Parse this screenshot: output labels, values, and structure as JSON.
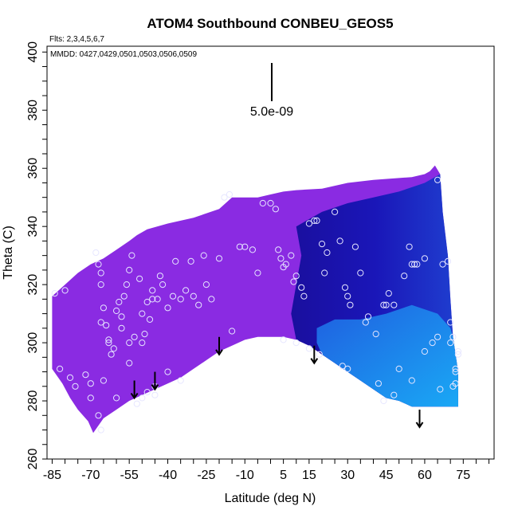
{
  "chart_data": {
    "type": "heatmap",
    "title": "ATOM4 Southbound CONBEU_GEOS5",
    "subtitle_flights": "Flts: 2,3,4,5,6,7",
    "subtitle_dates": "MMDD: 0427,0429,0501,0503,0506,0509",
    "xlabel": "Latitude (deg N)",
    "ylabel": "Theta (C)",
    "xlim": [
      -87,
      87
    ],
    "ylim": [
      260,
      402
    ],
    "x_ticks": [
      -85,
      -70,
      -55,
      -40,
      -25,
      -10,
      5,
      15,
      30,
      45,
      60,
      75
    ],
    "x_tick_labels": [
      "-85",
      "-70",
      "-55",
      "-40",
      "-25",
      "-10",
      "5",
      "15",
      "30",
      "45",
      "60",
      "75"
    ],
    "y_ticks": [
      260,
      280,
      300,
      320,
      340,
      360,
      380,
      400
    ],
    "y_tick_labels": [
      "260",
      "280",
      "300",
      "320",
      "340",
      "360",
      "380",
      "400"
    ],
    "scale_bar_label": "5.0e-09",
    "colors": {
      "violet": "#8a2be2",
      "deep_blue": "#1a0f9e",
      "mid_blue": "#1f5fe0",
      "light_blue": "#1aa8f5",
      "point_stroke": "#e6e6ff",
      "arrow": "#000000"
    },
    "upper_boundary": [
      [
        -85,
        316
      ],
      [
        -80,
        320
      ],
      [
        -75,
        324
      ],
      [
        -70,
        327
      ],
      [
        -65,
        329
      ],
      [
        -60,
        332
      ],
      [
        -55,
        335
      ],
      [
        -52,
        337
      ],
      [
        -48,
        339
      ],
      [
        -40,
        341
      ],
      [
        -30,
        343
      ],
      [
        -20,
        346
      ],
      [
        -15,
        350
      ],
      [
        -10,
        350
      ],
      [
        -5,
        350
      ],
      [
        0,
        351
      ],
      [
        5,
        352
      ],
      [
        10,
        352.5
      ],
      [
        20,
        353
      ],
      [
        30,
        355
      ],
      [
        40,
        356
      ],
      [
        55,
        357
      ],
      [
        60,
        358
      ],
      [
        62,
        359
      ],
      [
        64,
        361
      ],
      [
        66,
        358
      ],
      [
        67,
        345
      ],
      [
        69,
        330
      ],
      [
        70,
        315
      ],
      [
        71,
        302
      ],
      [
        73,
        290
      ],
      [
        73,
        278
      ],
      [
        65,
        278
      ],
      [
        55,
        278
      ],
      [
        50,
        280
      ]
    ],
    "lower_boundary": [
      [
        -85,
        291
      ],
      [
        -81,
        286
      ],
      [
        -78,
        281
      ],
      [
        -75,
        277
      ],
      [
        -71,
        273
      ],
      [
        -69,
        269
      ],
      [
        -65,
        274
      ],
      [
        -60,
        277
      ],
      [
        -55,
        280
      ],
      [
        -50,
        282
      ],
      [
        -45,
        284
      ],
      [
        -40,
        286
      ],
      [
        -35,
        288
      ],
      [
        -30,
        291
      ],
      [
        -25,
        294
      ],
      [
        -20,
        297
      ],
      [
        -15,
        299
      ],
      [
        -10,
        301
      ],
      [
        -5,
        302
      ],
      [
        0,
        302
      ],
      [
        5,
        302
      ],
      [
        10,
        301
      ],
      [
        15,
        299
      ],
      [
        20,
        296
      ],
      [
        25,
        293
      ],
      [
        30,
        290
      ],
      [
        35,
        287
      ],
      [
        40,
        284
      ],
      [
        45,
        281
      ],
      [
        50,
        280
      ]
    ],
    "blue_core": [
      [
        10,
        340
      ],
      [
        20,
        345
      ],
      [
        30,
        348
      ],
      [
        40,
        350
      ],
      [
        50,
        352
      ],
      [
        60,
        355
      ],
      [
        66,
        358
      ],
      [
        67,
        345
      ],
      [
        69,
        330
      ],
      [
        70,
        315
      ],
      [
        71,
        302
      ],
      [
        73,
        290
      ],
      [
        73,
        278
      ],
      [
        55,
        278
      ],
      [
        50,
        280
      ],
      [
        45,
        281
      ],
      [
        40,
        284
      ],
      [
        35,
        287
      ],
      [
        30,
        290
      ],
      [
        25,
        293
      ],
      [
        20,
        296
      ],
      [
        15,
        299
      ],
      [
        10,
        301
      ],
      [
        8,
        310
      ],
      [
        10,
        320
      ],
      [
        12,
        330
      ]
    ],
    "light_region": [
      [
        18,
        305
      ],
      [
        25,
        308
      ],
      [
        35,
        308
      ],
      [
        45,
        310
      ],
      [
        55,
        313
      ],
      [
        65,
        310
      ],
      [
        70,
        305
      ],
      [
        71,
        302
      ],
      [
        73,
        290
      ],
      [
        73,
        278
      ],
      [
        55,
        278
      ],
      [
        50,
        280
      ],
      [
        45,
        281
      ],
      [
        40,
        284
      ],
      [
        35,
        287
      ],
      [
        30,
        290
      ],
      [
        25,
        293
      ],
      [
        20,
        296
      ],
      [
        18,
        300
      ]
    ],
    "points": [
      [
        -84,
        317
      ],
      [
        -82,
        291
      ],
      [
        -80,
        318
      ],
      [
        -78,
        288
      ],
      [
        -76,
        285
      ],
      [
        -72,
        289
      ],
      [
        -70,
        286
      ],
      [
        -68,
        331
      ],
      [
        -67,
        327
      ],
      [
        -66,
        324
      ],
      [
        -66,
        320
      ],
      [
        -65,
        312
      ],
      [
        -66,
        307
      ],
      [
        -64,
        306
      ],
      [
        -63,
        300
      ],
      [
        -62,
        296
      ],
      [
        -63,
        301
      ],
      [
        -61,
        298
      ],
      [
        -60,
        311
      ],
      [
        -58,
        309
      ],
      [
        -59,
        314
      ],
      [
        -57,
        316
      ],
      [
        -58,
        305
      ],
      [
        -56,
        320
      ],
      [
        -55,
        325
      ],
      [
        -54,
        330
      ],
      [
        -55,
        300
      ],
      [
        -53,
        302
      ],
      [
        -51,
        322
      ],
      [
        -50,
        310
      ],
      [
        -50,
        300
      ],
      [
        -49,
        303
      ],
      [
        -48,
        314
      ],
      [
        -47,
        308
      ],
      [
        -46,
        315
      ],
      [
        -46,
        318
      ],
      [
        -44,
        315
      ],
      [
        -43,
        323
      ],
      [
        -42,
        320
      ],
      [
        -40,
        312
      ],
      [
        -38,
        316
      ],
      [
        -37,
        328
      ],
      [
        -35,
        315
      ],
      [
        -33,
        318
      ],
      [
        -31,
        328
      ],
      [
        -30,
        316
      ],
      [
        -28,
        313
      ],
      [
        -26,
        330
      ],
      [
        -25,
        320
      ],
      [
        -23,
        315
      ],
      [
        -20,
        329
      ],
      [
        -18,
        350
      ],
      [
        -16,
        351
      ],
      [
        -12,
        333
      ],
      [
        -10,
        333
      ],
      [
        -7,
        332
      ],
      [
        -5,
        324
      ],
      [
        -3,
        348
      ],
      [
        0,
        348
      ],
      [
        2,
        346
      ],
      [
        3,
        332
      ],
      [
        4,
        329
      ],
      [
        5,
        326
      ],
      [
        6,
        327
      ],
      [
        8,
        330
      ],
      [
        9,
        321
      ],
      [
        10,
        323
      ],
      [
        12,
        319
      ],
      [
        13,
        316
      ],
      [
        15,
        341
      ],
      [
        17,
        342
      ],
      [
        18,
        342
      ],
      [
        20,
        334
      ],
      [
        21,
        324
      ],
      [
        22,
        331
      ],
      [
        25,
        345
      ],
      [
        27,
        335
      ],
      [
        29,
        319
      ],
      [
        30,
        316
      ],
      [
        31,
        313
      ],
      [
        33,
        333
      ],
      [
        35,
        324
      ],
      [
        37,
        307
      ],
      [
        38,
        309
      ],
      [
        41,
        303
      ],
      [
        42,
        286
      ],
      [
        44,
        313
      ],
      [
        45,
        313
      ],
      [
        46,
        317
      ],
      [
        48,
        313
      ],
      [
        50,
        291
      ],
      [
        52,
        323
      ],
      [
        54,
        333
      ],
      [
        55,
        327
      ],
      [
        56,
        327
      ],
      [
        57,
        327
      ],
      [
        60,
        329
      ],
      [
        63,
        300
      ],
      [
        65,
        302
      ],
      [
        67,
        327
      ],
      [
        69,
        328
      ],
      [
        70,
        307
      ],
      [
        71,
        302
      ],
      [
        72,
        290
      ],
      [
        72,
        291
      ],
      [
        73,
        297
      ],
      [
        73,
        296
      ],
      [
        -55,
        293
      ],
      [
        -48,
        283
      ],
      [
        -45,
        285
      ],
      [
        -52,
        279
      ],
      [
        -70,
        281
      ],
      [
        -67,
        275
      ],
      [
        -66,
        270
      ],
      [
        5,
        301
      ],
      [
        10,
        300
      ],
      [
        15,
        298
      ],
      [
        19,
        296
      ],
      [
        30,
        291
      ],
      [
        48,
        282
      ],
      [
        55,
        287
      ],
      [
        60,
        297
      ],
      [
        66,
        284
      ],
      [
        71,
        285
      ],
      [
        72,
        286
      ],
      [
        70,
        300
      ],
      [
        65,
        356
      ],
      [
        44,
        280
      ],
      [
        28,
        292
      ],
      [
        -15,
        304
      ],
      [
        -40,
        290
      ],
      [
        -35,
        287
      ],
      [
        -65,
        287
      ],
      [
        -60,
        281
      ],
      [
        -50,
        281
      ],
      [
        -45,
        282
      ]
    ],
    "arrows": [
      [
        -53,
        287
      ],
      [
        -45,
        290
      ],
      [
        -20,
        302
      ],
      [
        17,
        299
      ],
      [
        58,
        277
      ]
    ]
  }
}
